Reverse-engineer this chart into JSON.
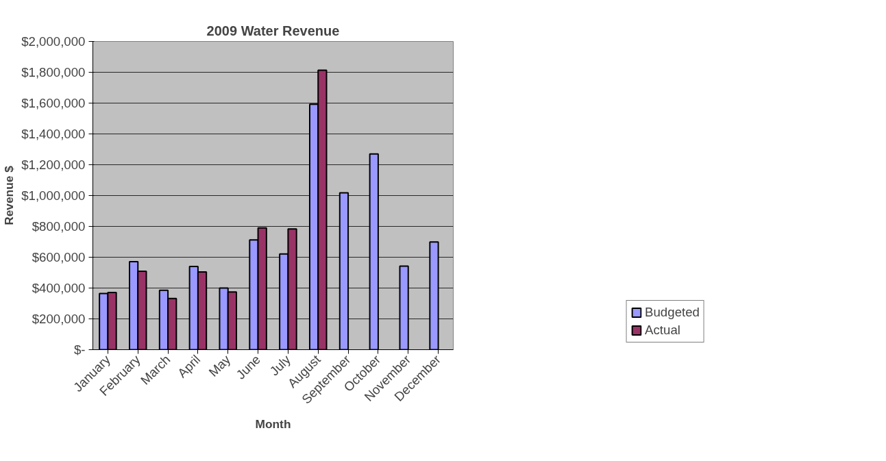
{
  "chart_data": {
    "type": "bar",
    "title": "2009 Water Revenue",
    "xlabel": "Month",
    "ylabel": "Revenue $",
    "categories": [
      "January",
      "February",
      "March",
      "April",
      "May",
      "June",
      "July",
      "August",
      "September",
      "October",
      "November",
      "December"
    ],
    "series": [
      {
        "name": "Budgeted",
        "color": "#9999ff",
        "values": [
          365000,
          571000,
          386000,
          540000,
          400000,
          712000,
          621000,
          1592000,
          1018000,
          1270000,
          542000,
          699000
        ]
      },
      {
        "name": "Actual",
        "color": "#993366",
        "values": [
          371000,
          509000,
          332000,
          504000,
          375000,
          790000,
          783000,
          1813000,
          null,
          null,
          null,
          null
        ]
      }
    ],
    "ylim": [
      0,
      2000000
    ],
    "yticks": [
      {
        "value": 0,
        "label": "$-"
      },
      {
        "value": 200000,
        "label": "$200,000"
      },
      {
        "value": 400000,
        "label": "$400,000"
      },
      {
        "value": 600000,
        "label": "$600,000"
      },
      {
        "value": 800000,
        "label": "$800,000"
      },
      {
        "value": 1000000,
        "label": "$1,000,000"
      },
      {
        "value": 1200000,
        "label": "$1,200,000"
      },
      {
        "value": 1400000,
        "label": "$1,400,000"
      },
      {
        "value": 1600000,
        "label": "$1,600,000"
      },
      {
        "value": 1800000,
        "label": "$1,800,000"
      },
      {
        "value": 2000000,
        "label": "$2,000,000"
      }
    ],
    "grid": "y",
    "legend": "bottom right"
  }
}
